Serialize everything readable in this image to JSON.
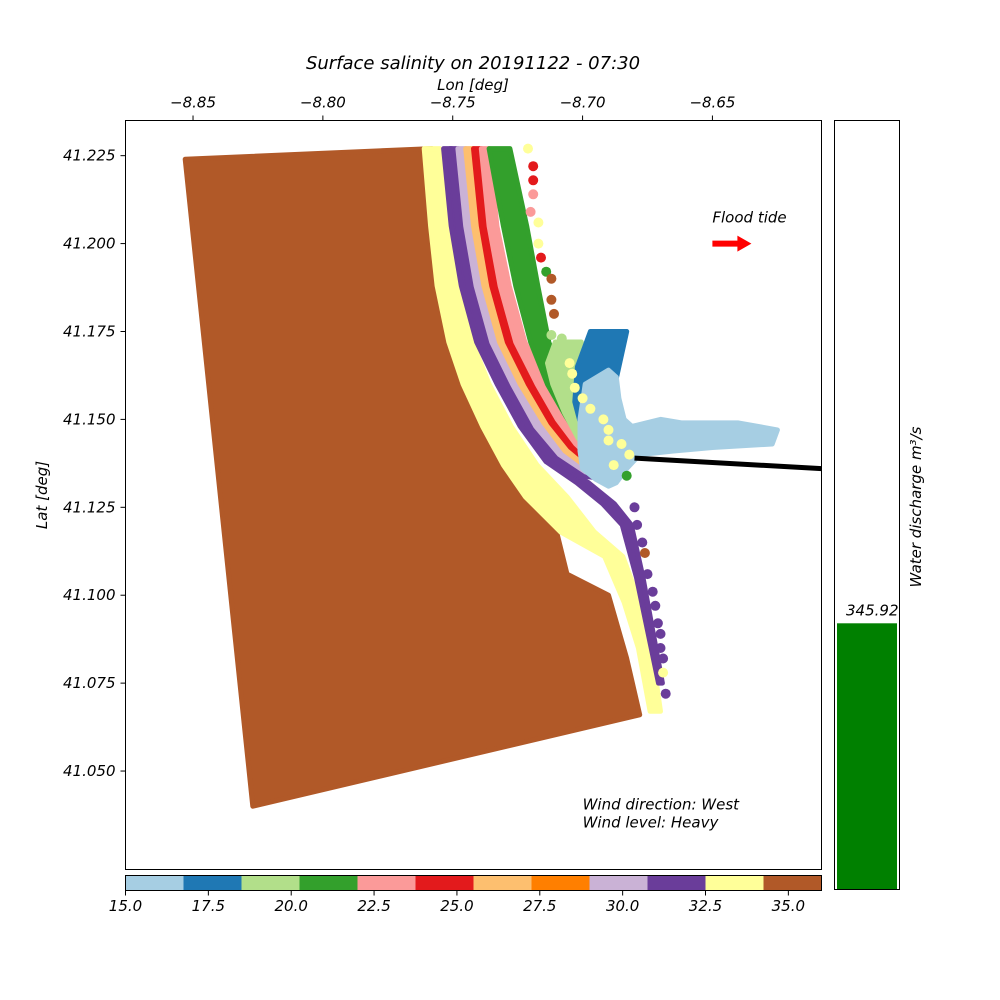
{
  "chart_data": {
    "type": "scatter",
    "title": "Surface salinity on 20191122 - 07:30",
    "xlabel": "Lon [deg]",
    "ylabel": "Lat [deg]",
    "xlim": [
      -8.876,
      -8.608
    ],
    "ylim": [
      41.022,
      41.235
    ],
    "x_ticks": [
      {
        "value": -8.85,
        "label": "−8.85"
      },
      {
        "value": -8.8,
        "label": "−8.80"
      },
      {
        "value": -8.75,
        "label": "−8.75"
      },
      {
        "value": -8.7,
        "label": "−8.70"
      },
      {
        "value": -8.65,
        "label": "−8.65"
      }
    ],
    "y_ticks": [
      {
        "value": 41.225,
        "label": "41.225"
      },
      {
        "value": 41.2,
        "label": "41.200"
      },
      {
        "value": 41.175,
        "label": "41.175"
      },
      {
        "value": 41.15,
        "label": "41.150"
      },
      {
        "value": 41.125,
        "label": "41.125"
      },
      {
        "value": 41.1,
        "label": "41.100"
      },
      {
        "value": 41.075,
        "label": "41.075"
      },
      {
        "value": 41.05,
        "label": "41.050"
      }
    ],
    "x_axis_position": "top",
    "grid": false,
    "colorbar": {
      "orientation": "horizontal",
      "placement": "bottom",
      "range": [
        15.0,
        36.0
      ],
      "colors": [
        "#a6cee3",
        "#1f78b4",
        "#b2df8a",
        "#33a02c",
        "#fb9a99",
        "#e31a1c",
        "#fdbf6f",
        "#ff7f00",
        "#cab2d6",
        "#6a3d9a",
        "#ffff99",
        "#b15928"
      ],
      "ticks": [
        {
          "value": 15.0,
          "label": "15.0"
        },
        {
          "value": 17.5,
          "label": "17.5"
        },
        {
          "value": 20.0,
          "label": "20.0"
        },
        {
          "value": 22.5,
          "label": "22.5"
        },
        {
          "value": 25.0,
          "label": "25.0"
        },
        {
          "value": 27.5,
          "label": "27.5"
        },
        {
          "value": 30.0,
          "label": "30.0"
        },
        {
          "value": 32.5,
          "label": "32.5"
        },
        {
          "value": 35.0,
          "label": "35.0"
        }
      ]
    },
    "regions": {
      "ocean": {
        "salinity": 36,
        "polygon": [
          [
            -8.853,
            41.224
          ],
          [
            -8.758,
            41.227
          ],
          [
            -8.756,
            41.205
          ],
          [
            -8.753,
            41.188
          ],
          [
            -8.748,
            41.172
          ],
          [
            -8.742,
            41.16
          ],
          [
            -8.733,
            41.148
          ],
          [
            -8.723,
            41.137
          ],
          [
            -8.713,
            41.127
          ],
          [
            -8.706,
            41.106
          ],
          [
            -8.69,
            41.1
          ],
          [
            -8.683,
            41.082
          ],
          [
            -8.678,
            41.066
          ],
          [
            -8.827,
            41.04
          ]
        ]
      },
      "bands": [
        {
          "salinity": 34,
          "lon": [
            -8.758,
            -8.755,
            -8.752,
            -8.747,
            -8.741,
            -8.733,
            -8.724,
            -8.714,
            -8.702,
            -8.688,
            -8.681,
            -8.676,
            -8.672
          ],
          "lat": [
            41.227,
            41.205,
            41.188,
            41.172,
            41.16,
            41.148,
            41.137,
            41.128,
            41.118,
            41.111,
            41.098,
            41.085,
            41.067
          ],
          "width": [
            0.006,
            0.007,
            0.008,
            0.009,
            0.01,
            0.011,
            0.013,
            0.016,
            0.013,
            0.007,
            0.006,
            0.005,
            0.004
          ]
        },
        {
          "salinity": 32,
          "lon": [
            -8.752,
            -8.749,
            -8.745,
            -8.739,
            -8.731,
            -8.722,
            -8.712,
            -8.7,
            -8.69,
            -8.683,
            -8.678,
            -8.674,
            -8.67
          ],
          "lat": [
            41.227,
            41.205,
            41.188,
            41.172,
            41.16,
            41.148,
            41.138,
            41.132,
            41.126,
            41.12,
            41.105,
            41.09,
            41.075
          ],
          "width": [
            0.003,
            0.0032,
            0.0034,
            0.0036,
            0.0038,
            0.004,
            0.0042,
            0.0045,
            0.0045,
            0.0035,
            0.0025,
            0.002,
            0.0015
          ]
        },
        {
          "salinity": 31,
          "lon": [
            -8.7495,
            -8.7465,
            -8.7425,
            -8.7365,
            -8.7285,
            -8.7195,
            -8.7095,
            -8.6985,
            -8.6905
          ],
          "lat": [
            41.227,
            41.205,
            41.188,
            41.172,
            41.16,
            41.148,
            41.139,
            41.134,
            41.133
          ],
          "width": [
            0.003,
            0.003,
            0.003,
            0.003,
            0.003,
            0.003,
            0.003,
            0.003,
            0.0025
          ]
        },
        {
          "salinity": 29,
          "lon": [
            -8.7465,
            -8.7435,
            -8.7395,
            -8.7335,
            -8.7255,
            -8.7165,
            -8.7075,
            -8.6975,
            -8.6905
          ],
          "lat": [
            41.227,
            41.205,
            41.188,
            41.172,
            41.16,
            41.148,
            41.14,
            41.135,
            41.134
          ],
          "width": [
            0.003,
            0.003,
            0.003,
            0.003,
            0.003,
            0.003,
            0.0028,
            0.0025,
            0.002
          ]
        },
        {
          "salinity": 27,
          "lon": [
            -8.7435,
            -8.7405,
            -8.7365,
            -8.7305,
            -8.7225,
            -8.7135,
            -8.7055,
            -8.6965,
            -8.6905
          ],
          "lat": [
            41.227,
            41.205,
            41.188,
            41.172,
            41.16,
            41.149,
            41.141,
            41.136,
            41.135
          ],
          "width": [
            0.003,
            0.003,
            0.003,
            0.003,
            0.003,
            0.0028,
            0.0025,
            0.0022,
            0.002
          ]
        },
        {
          "salinity": 25,
          "lon": [
            -8.7405,
            -8.7375,
            -8.7335,
            -8.7275,
            -8.7195,
            -8.711,
            -8.7035,
            -8.6955,
            -8.6905
          ],
          "lat": [
            41.227,
            41.205,
            41.188,
            41.172,
            41.16,
            41.149,
            41.142,
            41.137,
            41.136
          ],
          "width": [
            0.003,
            0.003,
            0.003,
            0.003,
            0.0028,
            0.0025,
            0.0022,
            0.002,
            0.0018
          ]
        },
        {
          "salinity": 23,
          "lon": [
            -8.7375,
            -8.7345,
            -8.73,
            -8.724,
            -8.716,
            -8.7085,
            -8.7015,
            -8.6945,
            -8.6905
          ],
          "lat": [
            41.227,
            41.205,
            41.188,
            41.172,
            41.16,
            41.15,
            41.143,
            41.138,
            41.137
          ],
          "width": [
            0.003,
            0.003,
            0.0035,
            0.0035,
            0.003,
            0.0025,
            0.0022,
            0.002,
            0.0018
          ]
        },
        {
          "salinity": 21,
          "lon": [
            -8.732,
            -8.726,
            -8.7215,
            -8.7165,
            -8.7105,
            -8.7045,
            -8.699,
            -8.6935,
            -8.6905
          ],
          "lat": [
            41.227,
            41.205,
            41.188,
            41.172,
            41.16,
            41.151,
            41.144,
            41.139,
            41.138
          ],
          "width": [
            0.008,
            0.009,
            0.0085,
            0.007,
            0.006,
            0.004,
            0.003,
            0.0022,
            0.0018
          ]
        },
        {
          "salinity": 19,
          "lon": [
            -8.7055,
            -8.7085,
            -8.707,
            -8.7035,
            -8.6995,
            -8.696
          ],
          "lat": [
            41.172,
            41.166,
            41.16,
            41.152,
            41.145,
            41.14
          ],
          "width": [
            0.01,
            0.01,
            0.009,
            0.007,
            0.005,
            0.003
          ]
        },
        {
          "salinity": 17,
          "lon": [
            -8.69,
            -8.694,
            -8.696,
            -8.695,
            -8.6935
          ],
          "lat": [
            41.175,
            41.165,
            41.155,
            41.148,
            41.141
          ],
          "width": [
            0.014,
            0.016,
            0.014,
            0.011,
            0.007
          ]
        }
      ],
      "estuary": {
        "salinity": 15,
        "polygon": [
          [
            -8.69,
            41.164
          ],
          [
            -8.687,
            41.162
          ],
          [
            -8.686,
            41.156
          ],
          [
            -8.684,
            41.15
          ],
          [
            -8.681,
            41.148
          ],
          [
            -8.67,
            41.15
          ],
          [
            -8.662,
            41.149
          ],
          [
            -8.64,
            41.149
          ],
          [
            -8.625,
            41.147
          ],
          [
            -8.627,
            41.143
          ],
          [
            -8.65,
            41.142
          ],
          [
            -8.665,
            41.141
          ],
          [
            -8.678,
            41.14
          ],
          [
            -8.683,
            41.136
          ],
          [
            -8.687,
            41.132
          ],
          [
            -8.69,
            41.131
          ],
          [
            -8.695,
            41.133
          ],
          [
            -8.7,
            41.136
          ],
          [
            -8.701,
            41.141
          ],
          [
            -8.701,
            41.15
          ],
          [
            -8.699,
            41.16
          ]
        ]
      }
    },
    "coast_markers": {
      "lon": [
        -8.721,
        -8.719,
        -8.719,
        -8.719,
        -8.72,
        -8.717,
        -8.717,
        -8.716,
        -8.714,
        -8.712,
        -8.712,
        -8.711,
        -8.712,
        -8.708,
        -8.707,
        -8.705,
        -8.704,
        -8.703,
        -8.7,
        -8.697,
        -8.692,
        -8.69,
        -8.69,
        -8.685,
        -8.682,
        -8.688,
        -8.683,
        -8.68,
        -8.679,
        -8.677,
        -8.676,
        -8.675,
        -8.673,
        -8.672,
        -8.671,
        -8.67,
        -8.67,
        -8.669,
        -8.669,
        -8.668
      ],
      "lat": [
        41.227,
        41.222,
        41.218,
        41.214,
        41.209,
        41.206,
        41.2,
        41.196,
        41.192,
        41.19,
        41.184,
        41.18,
        41.174,
        41.173,
        41.169,
        41.166,
        41.163,
        41.159,
        41.156,
        41.153,
        41.15,
        41.147,
        41.144,
        41.143,
        41.14,
        41.137,
        41.134,
        41.125,
        41.12,
        41.115,
        41.112,
        41.106,
        41.101,
        41.097,
        41.092,
        41.089,
        41.085,
        41.082,
        41.078,
        41.072
      ],
      "salinity": [
        34,
        25,
        25,
        23,
        23,
        34,
        34,
        25,
        21,
        36,
        36,
        36,
        19,
        19,
        19,
        34,
        34,
        34,
        34,
        34,
        34,
        34,
        34,
        34,
        34,
        34,
        21,
        31,
        31,
        31,
        36,
        31,
        31,
        31,
        31,
        31,
        31,
        31,
        34,
        31
      ]
    },
    "annotations": [
      {
        "text": "Flood tide",
        "lon": -8.65,
        "lat": 41.206
      },
      {
        "text": "Wind direction: West",
        "lon": -8.7,
        "lat": 41.039
      },
      {
        "text": "Wind level: Heavy",
        "lon": -8.7,
        "lat": 41.034
      }
    ],
    "flood_arrow": {
      "from": [
        -8.65,
        41.2
      ],
      "to": [
        -8.635,
        41.2
      ],
      "color": "#ff0000"
    },
    "transect_line": {
      "from": [
        -8.68,
        41.139
      ],
      "to": [
        -8.608,
        41.136
      ],
      "color": "#000000"
    },
    "discharge": {
      "ylabel": "Water discharge m³/s",
      "value": 345.92,
      "value_label": "345.92",
      "ylim": [
        0,
        1000
      ],
      "bar_color": "#008000"
    }
  }
}
